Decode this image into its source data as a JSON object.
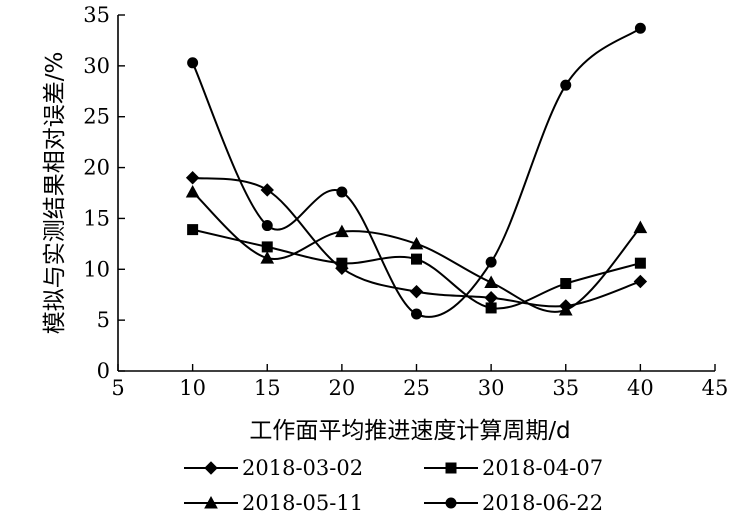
{
  "chart_data": {
    "type": "line",
    "xlabel": "工作面平均推进速度计算周期/d",
    "ylabel": "模拟与实测结果相对误差/%",
    "xlim": [
      5,
      45
    ],
    "ylim": [
      0,
      35
    ],
    "xticks": [
      5,
      10,
      15,
      20,
      25,
      30,
      35,
      40,
      45
    ],
    "yticks": [
      0,
      5,
      10,
      15,
      20,
      25,
      30,
      35
    ],
    "grid": false,
    "legend_position": "bottom",
    "series": [
      {
        "name": "2018-03-02",
        "marker": "diamond",
        "x": [
          10,
          15,
          20,
          25,
          30,
          35,
          40
        ],
        "y": [
          19.0,
          17.8,
          10.1,
          7.8,
          7.2,
          6.4,
          8.8
        ]
      },
      {
        "name": "2018-04-07",
        "marker": "square",
        "x": [
          10,
          15,
          20,
          25,
          30,
          35,
          40
        ],
        "y": [
          13.9,
          12.2,
          10.6,
          11.0,
          6.2,
          8.6,
          10.6
        ]
      },
      {
        "name": "2018-05-11",
        "marker": "triangle",
        "x": [
          10,
          15,
          20,
          25,
          30,
          35,
          40
        ],
        "y": [
          17.6,
          11.1,
          13.7,
          12.5,
          8.7,
          6.0,
          14.1
        ]
      },
      {
        "name": "2018-06-22",
        "marker": "circle",
        "x": [
          10,
          15,
          20,
          25,
          30,
          35,
          40
        ],
        "y": [
          30.3,
          14.3,
          17.6,
          5.6,
          10.7,
          28.1,
          33.7
        ]
      }
    ]
  }
}
